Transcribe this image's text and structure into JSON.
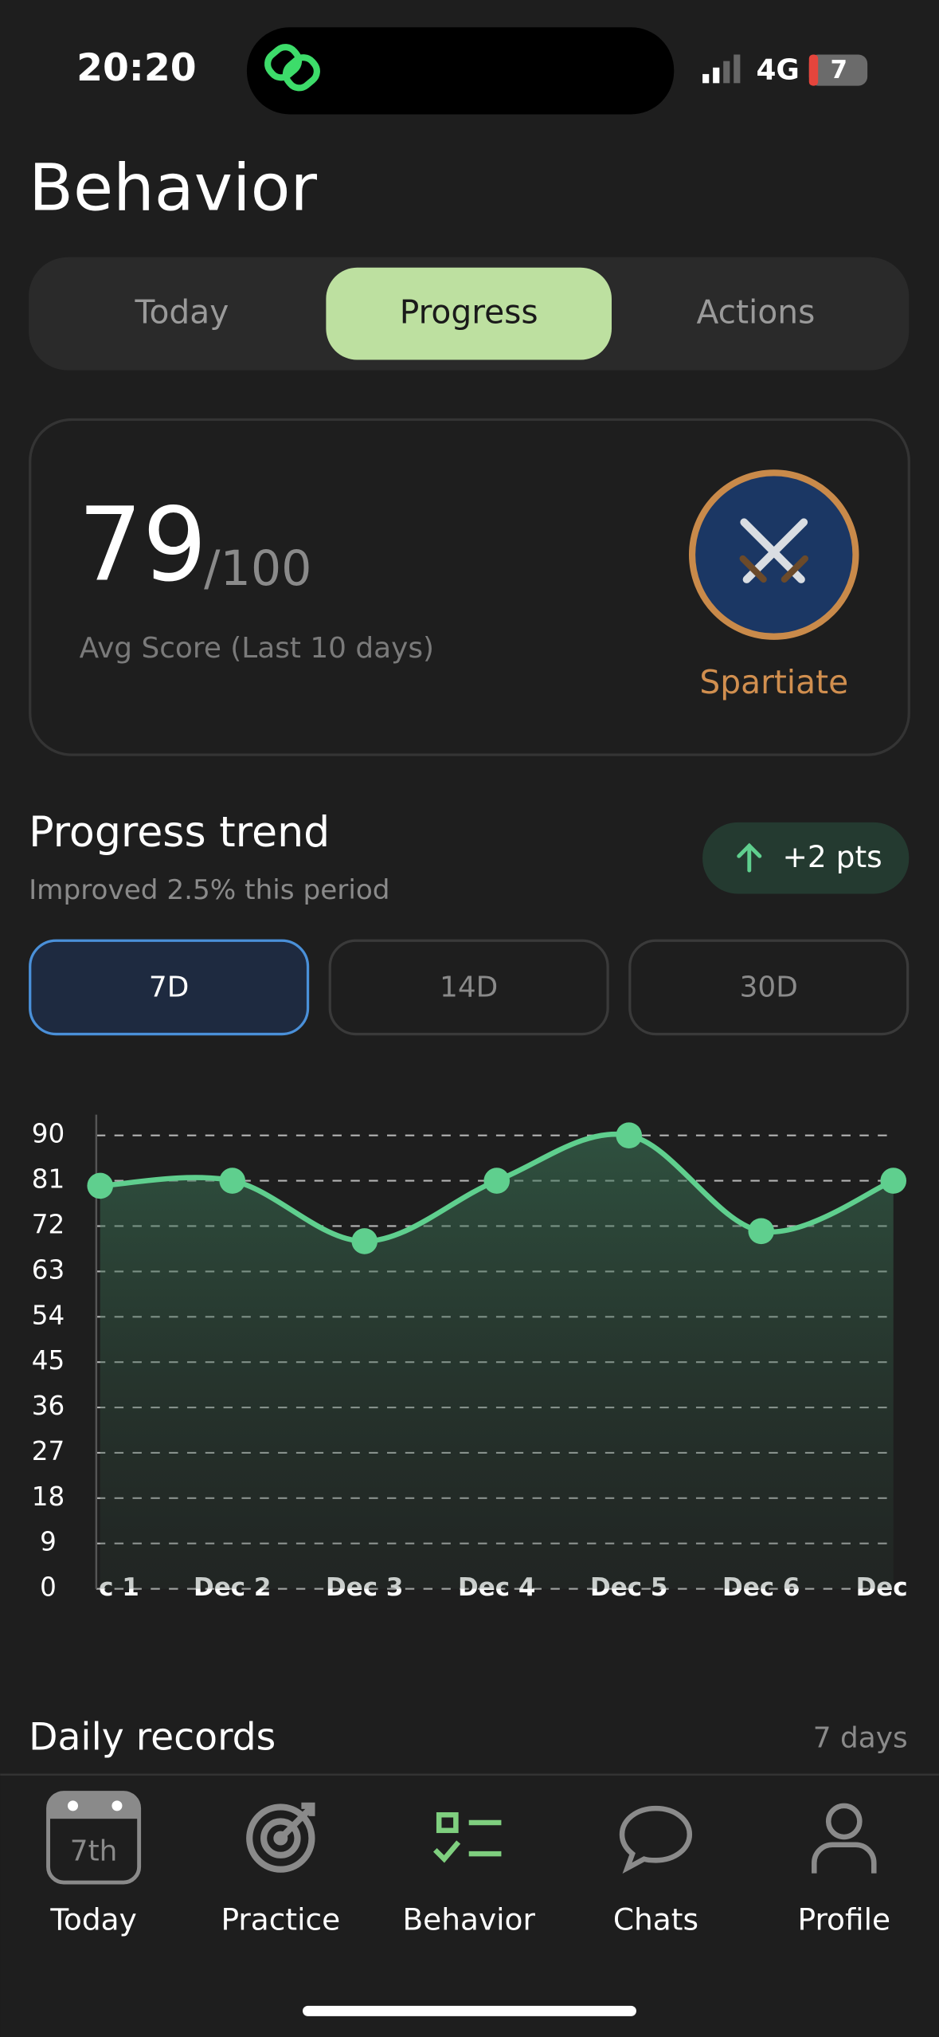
{
  "status_bar": {
    "time": "20:20",
    "network": "4G",
    "battery": "7"
  },
  "header": {
    "title": "Behavior"
  },
  "tabs": [
    "Today",
    "Progress",
    "Actions"
  ],
  "score_card": {
    "score": "79",
    "max": "/100",
    "caption": "Avg Score (Last 10 days)",
    "rank": "Spartiate"
  },
  "trend": {
    "title": "Progress trend",
    "subtitle": "Improved 2.5% this period",
    "badge": "+2 pts",
    "ranges": [
      "7D",
      "14D",
      "30D"
    ]
  },
  "chart_data": {
    "type": "line",
    "categories": [
      "c 1",
      "Dec 2",
      "Dec 3",
      "Dec 4",
      "Dec 5",
      "Dec 6",
      "Dec"
    ],
    "values": [
      80,
      81,
      69,
      81,
      90,
      71,
      81
    ],
    "color": "#5fcf8e",
    "ylim": [
      0,
      90
    ],
    "yticks": [
      0,
      9,
      18,
      27,
      36,
      45,
      54,
      63,
      72,
      81,
      90
    ],
    "grid": true
  },
  "daily_records": {
    "title": "Daily records",
    "count": "7 days"
  },
  "nav": {
    "calendar_day": "7th",
    "items": [
      "Today",
      "Practice",
      "Behavior",
      "Chats",
      "Profile"
    ]
  }
}
